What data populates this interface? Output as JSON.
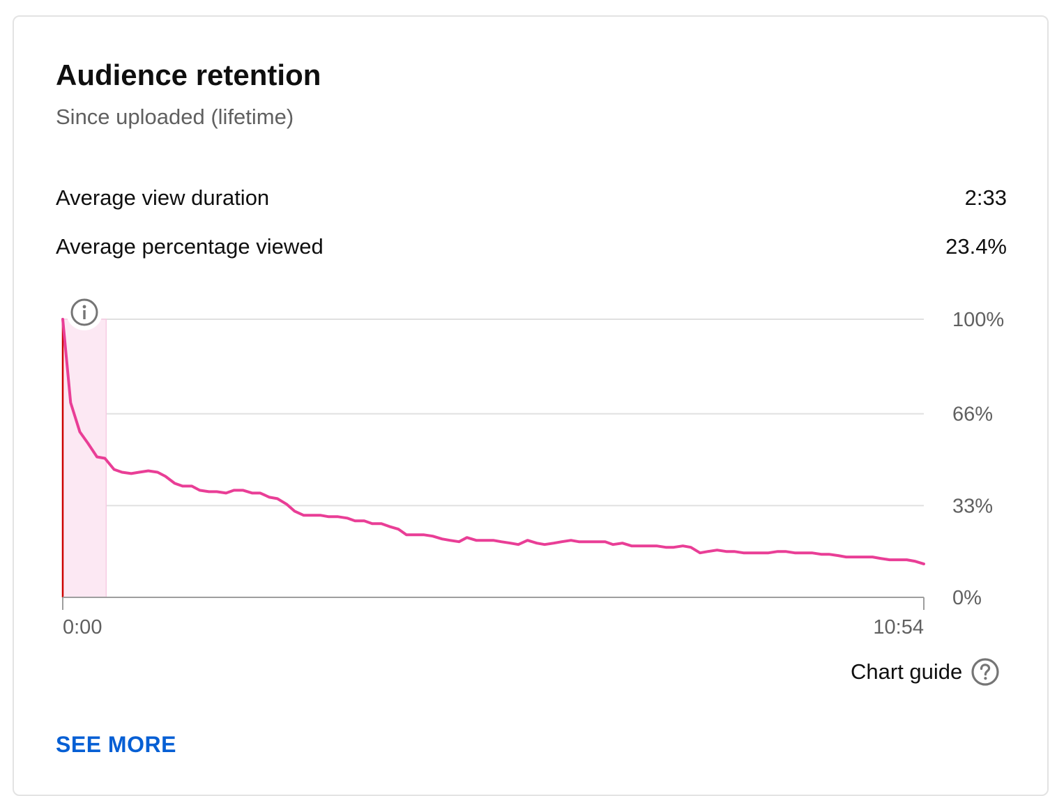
{
  "card": {
    "title": "Audience retention",
    "subtitle": "Since uploaded (lifetime)"
  },
  "metrics": [
    {
      "label": "Average view duration",
      "value": "2:33"
    },
    {
      "label": "Average percentage viewed",
      "value": "23.4%"
    }
  ],
  "chart_guide": {
    "label": "Chart guide",
    "icon": "help-circle-icon"
  },
  "see_more": {
    "label": "SEE MORE"
  },
  "colors": {
    "line": "#e93e96",
    "highlight_fill": "#fce8f3",
    "start_marker": "#cc0000",
    "gridline": "#e0e0e0",
    "axis": "#9e9e9e",
    "tick_text": "#606060",
    "link": "#065fd4"
  },
  "chart_data": {
    "type": "line",
    "title": "",
    "xlabel": "",
    "ylabel": "",
    "x_unit": "seconds",
    "xlim": [
      0,
      654
    ],
    "ylim": [
      0,
      100
    ],
    "x_tick_labels": [
      {
        "x": 0,
        "label": "0:00"
      },
      {
        "x": 654,
        "label": "10:54"
      }
    ],
    "y_ticks": [
      {
        "y": 100,
        "label": "100%"
      },
      {
        "y": 66,
        "label": "66%"
      },
      {
        "y": 33,
        "label": "33%"
      },
      {
        "y": 0,
        "label": "0%"
      }
    ],
    "grid": true,
    "legend": "none",
    "highlighted_range": [
      0,
      33
    ],
    "info_icon": "info-icon",
    "series": [
      {
        "x": [
          0,
          6,
          13,
          19,
          26,
          32,
          39,
          45,
          52,
          58,
          65,
          72,
          78,
          85,
          91,
          98,
          104,
          111,
          117,
          124,
          130,
          137,
          144,
          150,
          157,
          163,
          170,
          176,
          183,
          189,
          196,
          202,
          209,
          216,
          222,
          229,
          235,
          242,
          248,
          255,
          261,
          268,
          274,
          281,
          288,
          294,
          301,
          307,
          314,
          320,
          327,
          333,
          340,
          346,
          353,
          360,
          366,
          373,
          379,
          386,
          392,
          399,
          405,
          412,
          418,
          425,
          432,
          438,
          445,
          451,
          458,
          464,
          471,
          477,
          484,
          490,
          497,
          504,
          510,
          517,
          523,
          530,
          536,
          543,
          549,
          556,
          562,
          569,
          576,
          582,
          589,
          595,
          602,
          608,
          615,
          621,
          628,
          634,
          641,
          647,
          654
        ],
        "y": [
          100,
          70,
          59.5,
          55.5,
          50.5,
          50,
          46,
          45,
          44.5,
          45,
          45.5,
          45,
          43.5,
          41,
          40,
          40,
          38.5,
          38,
          38,
          37.5,
          38.5,
          38.5,
          37.5,
          37.5,
          36,
          35.5,
          33.5,
          31,
          29.5,
          29.5,
          29.5,
          29,
          29,
          28.5,
          27.5,
          27.5,
          26.5,
          26.5,
          25.5,
          24.5,
          22.5,
          22.5,
          22.5,
          22,
          21,
          20.5,
          20,
          21.5,
          20.5,
          20.5,
          20.5,
          20,
          19.5,
          19,
          20.5,
          19.5,
          19,
          19.5,
          20,
          20.5,
          20,
          20,
          20,
          20,
          19,
          19.5,
          18.5,
          18.5,
          18.5,
          18.5,
          18,
          18,
          18.5,
          18,
          16,
          16.5,
          17,
          16.5,
          16.5,
          16,
          16,
          16,
          16,
          16.5,
          16.5,
          16,
          16,
          16,
          15.5,
          15.5,
          15,
          14.5,
          14.5,
          14.5,
          14.5,
          14,
          13.5,
          13.5,
          13.5,
          13,
          12
        ]
      }
    ]
  }
}
